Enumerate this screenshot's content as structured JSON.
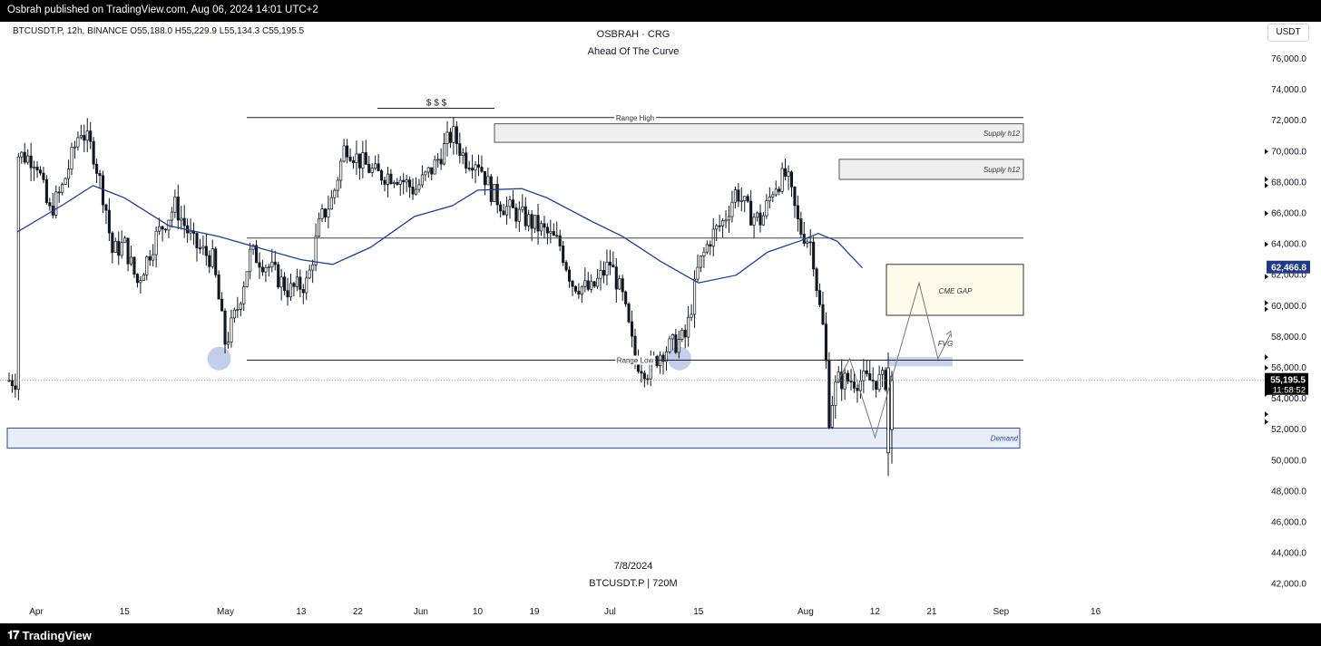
{
  "header": {
    "publisher_text": "Osbrah published on TradingView.com, Aug 06, 2024 14:01 UTC+2"
  },
  "chart_header": {
    "symbol_info": "BTCUSDT.P, 12h, BINANCE  O55,188.0  H55,229.9  L55,134.3  C55,195.5",
    "title": "OSBRAH · CRG",
    "subtitle": "Ahead Of The Curve",
    "currency_button": "USDT"
  },
  "watermark": {
    "date": "7/8/2024",
    "symbol": "BTCUSDT.P | 720M"
  },
  "price_axis": {
    "ticks": [
      "76,000.0",
      "74,000.0",
      "72,000.0",
      "70,000.0",
      "68,000.0",
      "66,000.0",
      "64,000.0",
      "62,000.0",
      "60,000.0",
      "58,000.0",
      "56,000.0",
      "54,000.0",
      "52,000.0",
      "50,000.0",
      "48,000.0",
      "46,000.0",
      "44,000.0",
      "42,000.0"
    ],
    "ma_label": "62,466.8",
    "last_price": "55,195.5",
    "countdown": "11:58:52"
  },
  "time_axis": {
    "ticks": [
      "Apr",
      "15",
      "May",
      "13",
      "22",
      "Jun",
      "10",
      "19",
      "Jul",
      "15",
      "Aug",
      "12",
      "21",
      "Sep",
      "16"
    ]
  },
  "annotations": {
    "range_high": "Range High",
    "range_low": "Range Low",
    "liquidity": "$ $ $",
    "supply_1": "Supply h12",
    "supply_2": "Supply h12",
    "cme_gap": "CME GAP",
    "fvg": "FVG",
    "demand": "Demand"
  },
  "footer": {
    "brand": "TradingView"
  },
  "colors": {
    "ma_line": "#1f3f9c",
    "ma_label_bg": "#1e3a8a",
    "demand_fill": "#e8eef9",
    "demand_border": "#2a4ba0",
    "cme_fill": "#fffbea",
    "fvg_fill": "#c7d4ec",
    "supply_fill": "#efefef",
    "swing_marker": "#b7c6e6",
    "candle": "#131722"
  },
  "chart_data": {
    "type": "candlestick",
    "timeframe": "12h",
    "x_range": [
      "2024-03-29",
      "2024-09-23"
    ],
    "ylim": [
      41000,
      77800
    ],
    "price_path": [
      [
        "2024-03-29",
        69800
      ],
      [
        "2024-04-01",
        69500
      ],
      [
        "2024-04-03",
        66000
      ],
      [
        "2024-04-05",
        67500
      ],
      [
        "2024-04-08",
        71500
      ],
      [
        "2024-04-10",
        70000
      ],
      [
        "2024-04-12",
        66500
      ],
      [
        "2024-04-13",
        63500
      ],
      [
        "2024-04-15",
        64000
      ],
      [
        "2024-04-17",
        61500
      ],
      [
        "2024-04-20",
        64500
      ],
      [
        "2024-04-23",
        66500
      ],
      [
        "2024-04-26",
        64000
      ],
      [
        "2024-04-29",
        63000
      ],
      [
        "2024-05-01",
        57500
      ],
      [
        "2024-05-03",
        60000
      ],
      [
        "2024-05-05",
        63500
      ],
      [
        "2024-05-08",
        62500
      ],
      [
        "2024-05-11",
        61000
      ],
      [
        "2024-05-14",
        61500
      ],
      [
        "2024-05-16",
        65500
      ],
      [
        "2024-05-18",
        67000
      ],
      [
        "2024-05-20",
        70500
      ],
      [
        "2024-05-22",
        69500
      ],
      [
        "2024-05-25",
        68500
      ],
      [
        "2024-05-28",
        68500
      ],
      [
        "2024-05-31",
        67500
      ],
      [
        "2024-06-03",
        69000
      ],
      [
        "2024-06-06",
        71200
      ],
      [
        "2024-06-08",
        69500
      ],
      [
        "2024-06-10",
        69500
      ],
      [
        "2024-06-12",
        67500
      ],
      [
        "2024-06-14",
        66500
      ],
      [
        "2024-06-17",
        65800
      ],
      [
        "2024-06-20",
        65000
      ],
      [
        "2024-06-23",
        64000
      ],
      [
        "2024-06-25",
        61500
      ],
      [
        "2024-06-28",
        61000
      ],
      [
        "2024-07-01",
        62800
      ],
      [
        "2024-07-03",
        60500
      ],
      [
        "2024-07-05",
        56500
      ],
      [
        "2024-07-07",
        55800
      ],
      [
        "2024-07-09",
        57000
      ],
      [
        "2024-07-11",
        57500
      ],
      [
        "2024-07-13",
        58000
      ],
      [
        "2024-07-15",
        62500
      ],
      [
        "2024-07-17",
        64500
      ],
      [
        "2024-07-19",
        65500
      ],
      [
        "2024-07-21",
        67500
      ],
      [
        "2024-07-23",
        66000
      ],
      [
        "2024-07-25",
        65500
      ],
      [
        "2024-07-27",
        67800
      ],
      [
        "2024-07-29",
        68500
      ],
      [
        "2024-07-31",
        65000
      ],
      [
        "2024-08-02",
        64000
      ],
      [
        "2024-08-03",
        60500
      ],
      [
        "2024-08-04",
        58000
      ],
      [
        "2024-08-05",
        51000
      ],
      [
        "2024-08-05",
        53500
      ],
      [
        "2024-08-06",
        55195.5
      ]
    ],
    "moving_average": [
      [
        "2024-03-29",
        64800
      ],
      [
        "2024-04-05",
        66500
      ],
      [
        "2024-04-10",
        67800
      ],
      [
        "2024-04-15",
        67000
      ],
      [
        "2024-04-22",
        65200
      ],
      [
        "2024-04-30",
        64500
      ],
      [
        "2024-05-06",
        63800
      ],
      [
        "2024-05-13",
        63000
      ],
      [
        "2024-05-18",
        62700
      ],
      [
        "2024-05-24",
        63800
      ],
      [
        "2024-05-31",
        65800
      ],
      [
        "2024-06-06",
        66500
      ],
      [
        "2024-06-10",
        67500
      ],
      [
        "2024-06-17",
        67600
      ],
      [
        "2024-06-21",
        67000
      ],
      [
        "2024-06-28",
        65500
      ],
      [
        "2024-07-03",
        64500
      ],
      [
        "2024-07-09",
        62900
      ],
      [
        "2024-07-15",
        61500
      ],
      [
        "2024-07-21",
        62000
      ],
      [
        "2024-07-26",
        63500
      ],
      [
        "2024-07-31",
        64200
      ],
      [
        "2024-08-03",
        64700
      ],
      [
        "2024-08-06",
        64200
      ],
      [
        "2024-08-10",
        62466.8
      ]
    ],
    "levels": {
      "range_high": 72200,
      "range_low": 56500,
      "mid_line": 64400
    },
    "zones": {
      "supply_1": [
        70600,
        71800
      ],
      "supply_2": [
        68200,
        69500
      ],
      "cme_gap": [
        59400,
        62700
      ],
      "fvg": [
        56100,
        56700
      ],
      "demand": [
        50800,
        52100
      ]
    },
    "projection": [
      [
        "2024-08-06",
        55000
      ],
      [
        "2024-08-08",
        56600
      ],
      [
        "2024-08-12",
        51500
      ],
      [
        "2024-08-19",
        61500
      ],
      [
        "2024-08-22",
        56600
      ],
      [
        "2024-08-24",
        58200
      ]
    ],
    "swing_lows": [
      [
        "2024-04-30",
        56600
      ],
      [
        "2024-07-12",
        56600
      ]
    ]
  }
}
